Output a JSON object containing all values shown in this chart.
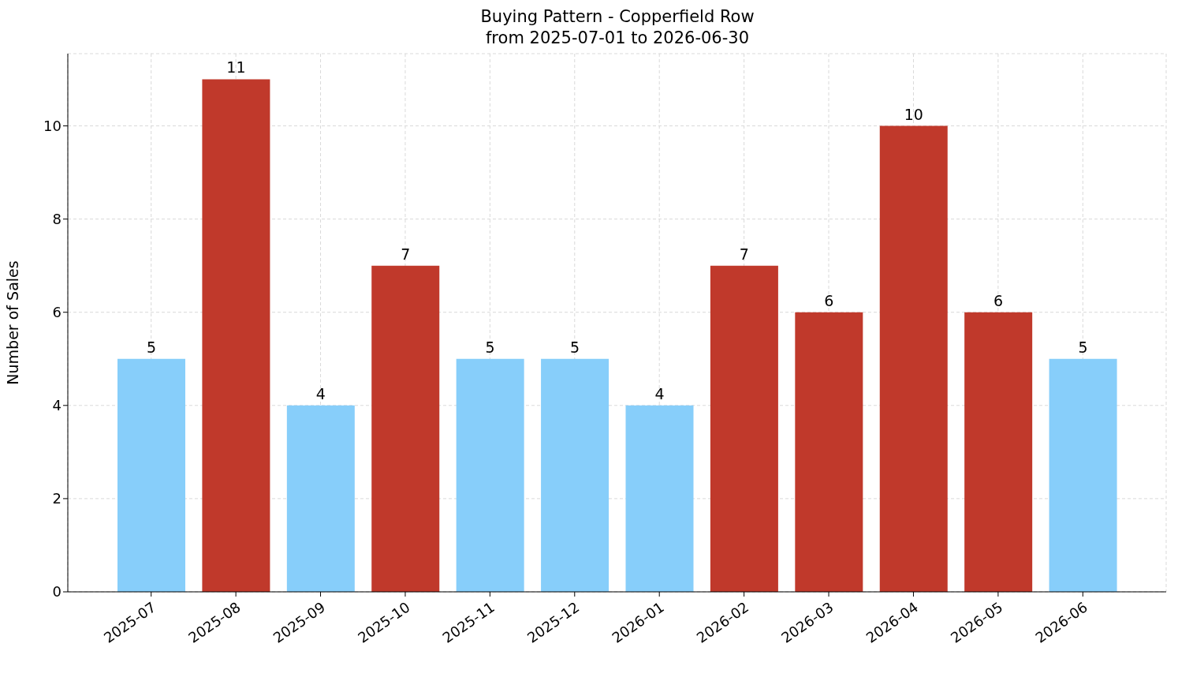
{
  "chart_data": {
    "type": "bar",
    "title": "Buying Pattern - Copperfield Row",
    "subtitle": "from 2025-07-01 to 2026-06-30",
    "ylabel": "Number of Sales",
    "categories": [
      "2025-07",
      "2025-08",
      "2025-09",
      "2025-10",
      "2025-11",
      "2025-12",
      "2026-01",
      "2026-02",
      "2026-03",
      "2026-04",
      "2026-05",
      "2026-06"
    ],
    "values": [
      5,
      11,
      4,
      7,
      5,
      5,
      4,
      7,
      6,
      10,
      6,
      5
    ],
    "colors": [
      "#87cefa",
      "#c0392b",
      "#87cefa",
      "#c0392b",
      "#87cefa",
      "#87cefa",
      "#87cefa",
      "#c0392b",
      "#c0392b",
      "#c0392b",
      "#c0392b",
      "#87cefa"
    ],
    "ylim": [
      0,
      11.55
    ],
    "yticks": [
      0,
      2,
      4,
      6,
      8,
      10
    ],
    "grid": true,
    "data_labels": true
  }
}
